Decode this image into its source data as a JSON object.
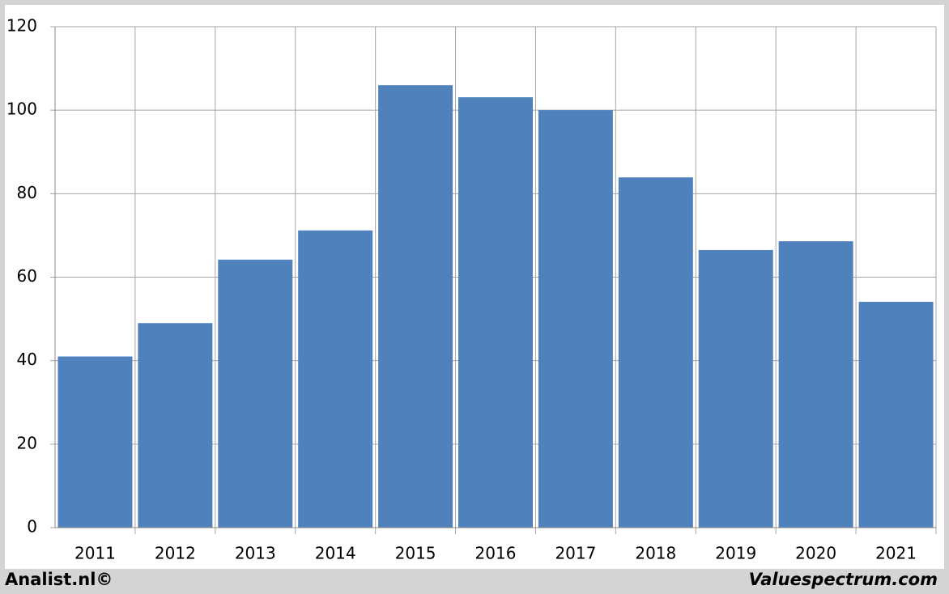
{
  "chart_data": {
    "type": "bar",
    "categories": [
      "2011",
      "2012",
      "2013",
      "2014",
      "2015",
      "2016",
      "2017",
      "2018",
      "2019",
      "2020",
      "2021"
    ],
    "values": [
      41,
      49,
      64.2,
      71.2,
      106,
      103.1,
      100,
      83.9,
      66.5,
      68.6,
      54.1
    ],
    "color": "#4f81bd",
    "ylim": [
      0,
      120
    ],
    "yticks": [
      0,
      20,
      40,
      60,
      80,
      100,
      120
    ],
    "grid": true
  },
  "footer": {
    "left": "Analist.nl©",
    "right": "Valuespectrum.com"
  }
}
